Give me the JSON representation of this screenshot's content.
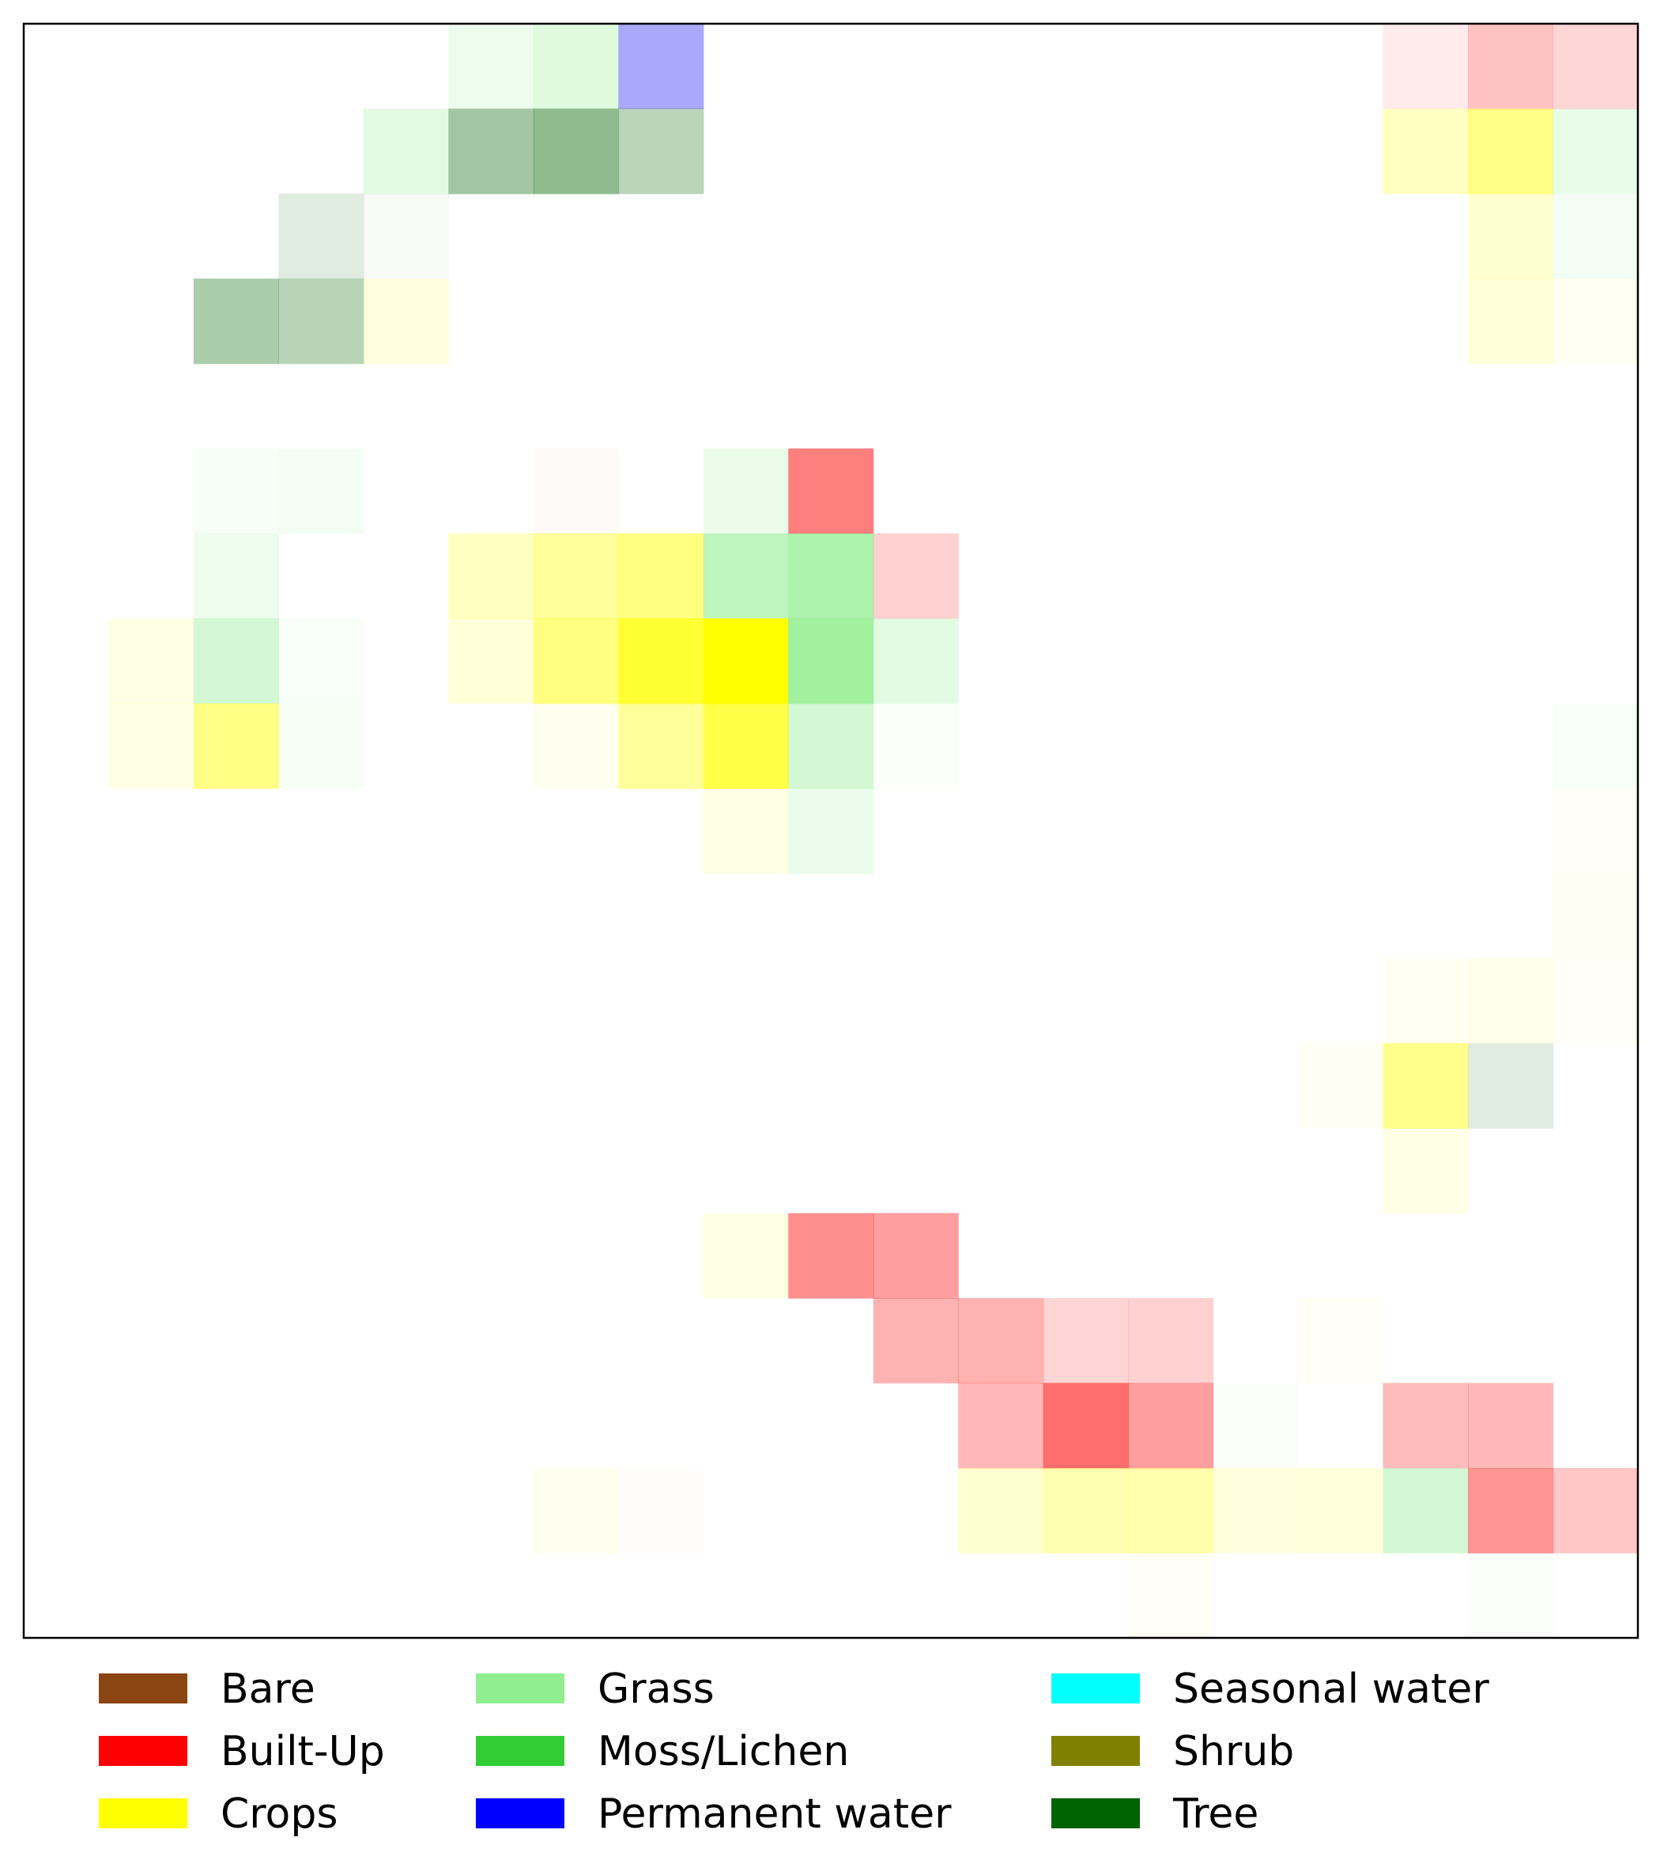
{
  "chart_data": {
    "type": "heatmap",
    "title": "",
    "xlabel": "",
    "ylabel": "",
    "grid": false,
    "legend_position": "bottom",
    "grid_size": {
      "rows": 19,
      "cols": 19
    },
    "classes": [
      {
        "name": "Bare",
        "color": "#8B4513"
      },
      {
        "name": "Built-Up",
        "color": "#FF0000"
      },
      {
        "name": "Crops",
        "color": "#FFFF00"
      },
      {
        "name": "Grass",
        "color": "#90EE90"
      },
      {
        "name": "Moss/Lichen",
        "color": "#32CD32"
      },
      {
        "name": "Permanent water",
        "color": "#0000FF"
      },
      {
        "name": "Seasonal water",
        "color": "#00FFFF"
      },
      {
        "name": "Shrub",
        "color": "#808000"
      },
      {
        "name": "Tree",
        "color": "#006400"
      }
    ],
    "cells": [
      {
        "row": 0,
        "col": 5,
        "class": "Grass",
        "intensity": 0.15
      },
      {
        "row": 0,
        "col": 6,
        "class": "Grass",
        "intensity": 0.28
      },
      {
        "row": 0,
        "col": 7,
        "class": "Permanent water",
        "intensity": 0.34
      },
      {
        "row": 0,
        "col": 16,
        "class": "Built-Up",
        "intensity": 0.08
      },
      {
        "row": 0,
        "col": 17,
        "class": "Built-Up",
        "intensity": 0.24
      },
      {
        "row": 0,
        "col": 18,
        "class": "Built-Up",
        "intensity": 0.16
      },
      {
        "row": 1,
        "col": 4,
        "class": "Grass",
        "intensity": 0.25
      },
      {
        "row": 1,
        "col": 5,
        "class": "Tree",
        "intensity": 0.37
      },
      {
        "row": 1,
        "col": 6,
        "class": "Tree",
        "intensity": 0.44
      },
      {
        "row": 1,
        "col": 7,
        "class": "Tree",
        "intensity": 0.27
      },
      {
        "row": 1,
        "col": 16,
        "class": "Crops",
        "intensity": 0.24
      },
      {
        "row": 1,
        "col": 17,
        "class": "Crops",
        "intensity": 0.47
      },
      {
        "row": 1,
        "col": 18,
        "class": "Grass",
        "intensity": 0.2
      },
      {
        "row": 2,
        "col": 3,
        "class": "Tree",
        "intensity": 0.12
      },
      {
        "row": 2,
        "col": 4,
        "class": "Tree",
        "intensity": 0.03
      },
      {
        "row": 2,
        "col": 17,
        "class": "Crops",
        "intensity": 0.18
      },
      {
        "row": 2,
        "col": 18,
        "class": "Grass",
        "intensity": 0.1
      },
      {
        "row": 3,
        "col": 2,
        "class": "Tree",
        "intensity": 0.33
      },
      {
        "row": 3,
        "col": 3,
        "class": "Tree",
        "intensity": 0.28
      },
      {
        "row": 3,
        "col": 4,
        "class": "Crops",
        "intensity": 0.12
      },
      {
        "row": 3,
        "col": 17,
        "class": "Crops",
        "intensity": 0.15
      },
      {
        "row": 3,
        "col": 18,
        "class": "Crops",
        "intensity": 0.05
      },
      {
        "row": 5,
        "col": 2,
        "class": "Grass",
        "intensity": 0.07
      },
      {
        "row": 5,
        "col": 3,
        "class": "Grass",
        "intensity": 0.1
      },
      {
        "row": 5,
        "col": 6,
        "class": "Built-Up",
        "intensity": 0.02
      },
      {
        "row": 5,
        "col": 8,
        "class": "Grass",
        "intensity": 0.18
      },
      {
        "row": 5,
        "col": 9,
        "class": "Built-Up",
        "intensity": 0.5
      },
      {
        "row": 6,
        "col": 2,
        "class": "Grass",
        "intensity": 0.15
      },
      {
        "row": 6,
        "col": 5,
        "class": "Crops",
        "intensity": 0.24
      },
      {
        "row": 6,
        "col": 6,
        "class": "Crops",
        "intensity": 0.4
      },
      {
        "row": 6,
        "col": 7,
        "class": "Crops",
        "intensity": 0.5
      },
      {
        "row": 6,
        "col": 8,
        "class": "Grass",
        "intensity": 0.58
      },
      {
        "row": 6,
        "col": 9,
        "class": "Grass",
        "intensity": 0.75
      },
      {
        "row": 6,
        "col": 10,
        "class": "Built-Up",
        "intensity": 0.18
      },
      {
        "row": 7,
        "col": 1,
        "class": "Crops",
        "intensity": 0.1
      },
      {
        "row": 7,
        "col": 2,
        "class": "Grass",
        "intensity": 0.4
      },
      {
        "row": 7,
        "col": 3,
        "class": "Grass",
        "intensity": 0.06
      },
      {
        "row": 7,
        "col": 5,
        "class": "Crops",
        "intensity": 0.15
      },
      {
        "row": 7,
        "col": 6,
        "class": "Crops",
        "intensity": 0.5
      },
      {
        "row": 7,
        "col": 7,
        "class": "Crops",
        "intensity": 0.8
      },
      {
        "row": 7,
        "col": 8,
        "class": "Crops",
        "intensity": 1.0
      },
      {
        "row": 7,
        "col": 9,
        "class": "Grass",
        "intensity": 0.85
      },
      {
        "row": 7,
        "col": 10,
        "class": "Grass",
        "intensity": 0.25
      },
      {
        "row": 8,
        "col": 1,
        "class": "Crops",
        "intensity": 0.1
      },
      {
        "row": 8,
        "col": 2,
        "class": "Crops",
        "intensity": 0.48
      },
      {
        "row": 8,
        "col": 3,
        "class": "Grass",
        "intensity": 0.08
      },
      {
        "row": 8,
        "col": 6,
        "class": "Crops",
        "intensity": 0.06
      },
      {
        "row": 8,
        "col": 7,
        "class": "Crops",
        "intensity": 0.4
      },
      {
        "row": 8,
        "col": 8,
        "class": "Crops",
        "intensity": 0.72
      },
      {
        "row": 8,
        "col": 9,
        "class": "Grass",
        "intensity": 0.4
      },
      {
        "row": 8,
        "col": 10,
        "class": "Grass",
        "intensity": 0.03
      },
      {
        "row": 8,
        "col": 18,
        "class": "Grass",
        "intensity": 0.06
      },
      {
        "row": 9,
        "col": 8,
        "class": "Crops",
        "intensity": 0.1
      },
      {
        "row": 9,
        "col": 9,
        "class": "Grass",
        "intensity": 0.17
      },
      {
        "row": 9,
        "col": 18,
        "class": "Crops",
        "intensity": 0.03
      },
      {
        "row": 10,
        "col": 18,
        "class": "Crops",
        "intensity": 0.04
      },
      {
        "row": 11,
        "col": 16,
        "class": "Crops",
        "intensity": 0.05
      },
      {
        "row": 11,
        "col": 17,
        "class": "Crops",
        "intensity": 0.08
      },
      {
        "row": 11,
        "col": 18,
        "class": "Crops",
        "intensity": 0.03
      },
      {
        "row": 12,
        "col": 15,
        "class": "Crops",
        "intensity": 0.04
      },
      {
        "row": 12,
        "col": 16,
        "class": "Crops",
        "intensity": 0.45
      },
      {
        "row": 12,
        "col": 17,
        "class": "Tree",
        "intensity": 0.12
      },
      {
        "row": 13,
        "col": 16,
        "class": "Crops",
        "intensity": 0.1
      },
      {
        "row": 14,
        "col": 8,
        "class": "Crops",
        "intensity": 0.1
      },
      {
        "row": 14,
        "col": 9,
        "class": "Built-Up",
        "intensity": 0.44
      },
      {
        "row": 14,
        "col": 10,
        "class": "Built-Up",
        "intensity": 0.38
      },
      {
        "row": 15,
        "col": 10,
        "class": "Built-Up",
        "intensity": 0.3
      },
      {
        "row": 15,
        "col": 11,
        "class": "Built-Up",
        "intensity": 0.3
      },
      {
        "row": 15,
        "col": 12,
        "class": "Built-Up",
        "intensity": 0.17
      },
      {
        "row": 15,
        "col": 13,
        "class": "Built-Up",
        "intensity": 0.18
      },
      {
        "row": 15,
        "col": 15,
        "class": "Crops",
        "intensity": 0.03
      },
      {
        "row": 16,
        "col": 11,
        "class": "Built-Up",
        "intensity": 0.28
      },
      {
        "row": 16,
        "col": 12,
        "class": "Built-Up",
        "intensity": 0.57
      },
      {
        "row": 16,
        "col": 13,
        "class": "Built-Up",
        "intensity": 0.38
      },
      {
        "row": 16,
        "col": 14,
        "class": "Grass",
        "intensity": 0.04
      },
      {
        "row": 16,
        "col": 16,
        "class": "Built-Up",
        "intensity": 0.27
      },
      {
        "row": 16,
        "col": 17,
        "class": "Built-Up",
        "intensity": 0.28
      },
      {
        "row": 17,
        "col": 6,
        "class": "Crops",
        "intensity": 0.06
      },
      {
        "row": 17,
        "col": 7,
        "class": "Built-Up",
        "intensity": 0.01
      },
      {
        "row": 17,
        "col": 11,
        "class": "Crops",
        "intensity": 0.18
      },
      {
        "row": 17,
        "col": 12,
        "class": "Crops",
        "intensity": 0.3
      },
      {
        "row": 17,
        "col": 13,
        "class": "Crops",
        "intensity": 0.32
      },
      {
        "row": 17,
        "col": 14,
        "class": "Crops",
        "intensity": 0.13
      },
      {
        "row": 17,
        "col": 15,
        "class": "Crops",
        "intensity": 0.14
      },
      {
        "row": 17,
        "col": 16,
        "class": "Grass",
        "intensity": 0.4
      },
      {
        "row": 17,
        "col": 17,
        "class": "Built-Up",
        "intensity": 0.42
      },
      {
        "row": 17,
        "col": 18,
        "class": "Built-Up",
        "intensity": 0.22
      },
      {
        "row": 18,
        "col": 13,
        "class": "Crops",
        "intensity": 0.03
      },
      {
        "row": 18,
        "col": 17,
        "class": "Grass",
        "intensity": 0.03
      }
    ]
  }
}
